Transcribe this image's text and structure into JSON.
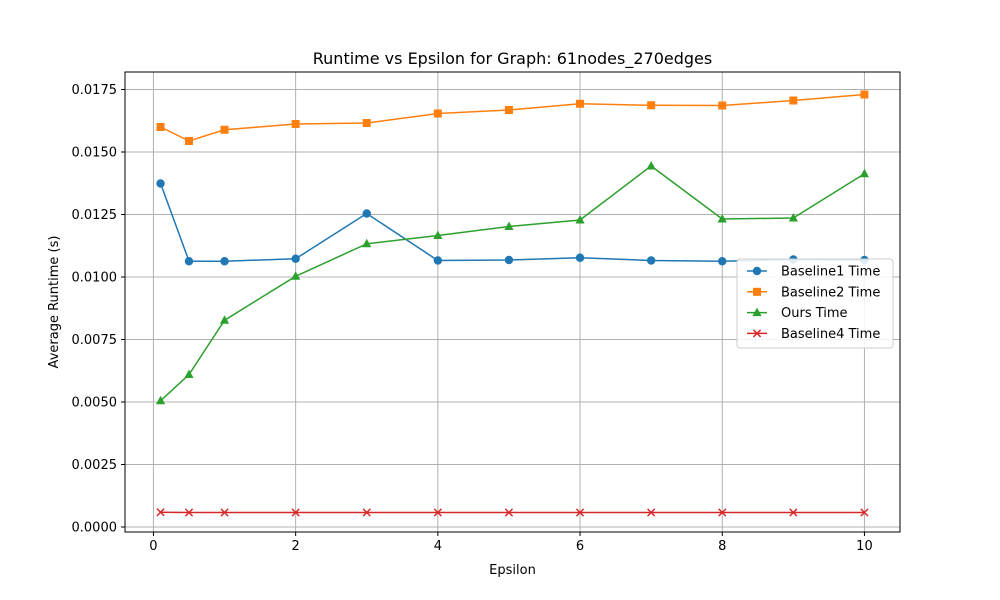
{
  "chart_data": {
    "type": "line",
    "title": "Runtime vs Epsilon for Graph: 61nodes_270edges",
    "xlabel": "Epsilon",
    "ylabel": "Average Runtime (s)",
    "xlim": [
      -0.4,
      10.5
    ],
    "ylim": [
      -0.0002,
      0.0182
    ],
    "xticks": [
      0,
      2,
      4,
      6,
      8,
      10
    ],
    "xtick_labels": [
      "0",
      "2",
      "4",
      "6",
      "8",
      "10"
    ],
    "yticks": [
      0.0,
      0.0025,
      0.005,
      0.0075,
      0.01,
      0.0125,
      0.015,
      0.0175
    ],
    "ytick_labels": [
      "0.0000",
      "0.0025",
      "0.0050",
      "0.0075",
      "0.0100",
      "0.0125",
      "0.0150",
      "0.0175"
    ],
    "grid": true,
    "legend_position": "center-right",
    "x": [
      0.1,
      0.5,
      1,
      2,
      3,
      4,
      5,
      6,
      7,
      8,
      9,
      10
    ],
    "series": [
      {
        "name": "Baseline1 Time",
        "color": "#1f77b4",
        "marker": "circle",
        "values": [
          0.01374,
          0.01063,
          0.01063,
          0.01073,
          0.01254,
          0.01066,
          0.01068,
          0.01077,
          0.01066,
          0.01063,
          0.0107,
          0.01068
        ]
      },
      {
        "name": "Baseline2 Time",
        "color": "#ff7f0e",
        "marker": "square",
        "values": [
          0.016,
          0.01544,
          0.01589,
          0.01612,
          0.01616,
          0.01654,
          0.01668,
          0.01693,
          0.01687,
          0.01686,
          0.01706,
          0.0173
        ]
      },
      {
        "name": "Ours Time",
        "color": "#2ca02c",
        "marker": "triangle",
        "values": [
          0.00505,
          0.0061,
          0.00827,
          0.01003,
          0.01133,
          0.01166,
          0.01202,
          0.01228,
          0.01444,
          0.01232,
          0.01236,
          0.01413
        ]
      },
      {
        "name": "Baseline4 Time",
        "color": "#d62728",
        "marker": "x",
        "values": [
          0.00059,
          0.00058,
          0.00058,
          0.00058,
          0.00058,
          0.00058,
          0.00058,
          0.00058,
          0.00058,
          0.00058,
          0.00058,
          0.00058
        ]
      }
    ]
  }
}
